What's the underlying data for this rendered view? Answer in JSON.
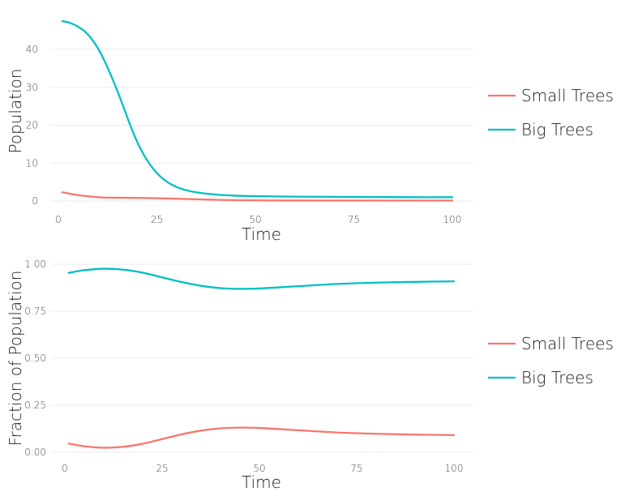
{
  "chart_data": [
    {
      "type": "line",
      "xlabel": "Time",
      "ylabel": "Population",
      "xlim": [
        0,
        100
      ],
      "ylim": [
        0,
        47.5
      ],
      "xticks": [
        0,
        25,
        50,
        75,
        100
      ],
      "yticks": [
        0,
        10,
        20,
        30,
        40
      ],
      "xtick_labels": [
        "0",
        "25",
        "50",
        "75",
        "100"
      ],
      "ytick_labels": [
        "0",
        "10",
        "20",
        "30",
        "40"
      ],
      "grid": true,
      "legend_position": "right",
      "x": [
        1,
        3,
        5,
        7,
        9,
        11,
        13,
        15,
        17,
        19,
        21,
        23,
        25,
        27,
        29,
        31,
        33,
        35,
        37,
        39,
        41,
        43,
        45,
        47,
        49,
        55,
        60,
        70,
        80,
        90,
        100
      ],
      "series": [
        {
          "name": "Small Trees",
          "color": "#F8766D",
          "values": [
            2.3,
            1.9,
            1.55,
            1.3,
            1.1,
            0.95,
            0.88,
            0.85,
            0.84,
            0.82,
            0.8,
            0.77,
            0.73,
            0.68,
            0.62,
            0.56,
            0.5,
            0.45,
            0.4,
            0.35,
            0.3,
            0.26,
            0.22,
            0.19,
            0.17,
            0.13,
            0.12,
            0.1,
            0.1,
            0.1,
            0.1
          ]
        },
        {
          "name": "Big Trees",
          "color": "#00BFC4",
          "values": [
            47.5,
            47.0,
            46.0,
            44.5,
            42.0,
            38.5,
            34.0,
            29.0,
            23.5,
            18.0,
            13.5,
            10.0,
            7.4,
            5.5,
            4.2,
            3.3,
            2.7,
            2.3,
            2.0,
            1.8,
            1.6,
            1.5,
            1.4,
            1.35,
            1.3,
            1.2,
            1.15,
            1.1,
            1.05,
            1.0,
            1.0
          ]
        }
      ]
    },
    {
      "type": "line",
      "xlabel": "Time",
      "ylabel": "Fraction of Population",
      "xlim": [
        0,
        100
      ],
      "ylim": [
        0,
        1.0
      ],
      "xticks": [
        0,
        25,
        50,
        75,
        100
      ],
      "yticks": [
        0,
        0.25,
        0.5,
        0.75,
        1.0
      ],
      "xtick_labels": [
        "0",
        "25",
        "50",
        "75",
        "100"
      ],
      "ytick_labels": [
        "0.00",
        "0.25",
        "0.50",
        "0.75",
        "1.00"
      ],
      "grid": true,
      "legend_position": "right",
      "x": [
        1,
        5,
        10,
        15,
        20,
        25,
        30,
        35,
        40,
        45,
        50,
        55,
        60,
        70,
        80,
        90,
        100
      ],
      "series": [
        {
          "name": "Small Trees",
          "color": "#F8766D",
          "values": [
            0.046,
            0.032,
            0.024,
            0.029,
            0.045,
            0.07,
            0.095,
            0.115,
            0.127,
            0.131,
            0.129,
            0.123,
            0.117,
            0.105,
            0.098,
            0.094,
            0.091
          ]
        },
        {
          "name": "Big Trees",
          "color": "#00BFC4",
          "values": [
            0.954,
            0.968,
            0.976,
            0.971,
            0.955,
            0.93,
            0.905,
            0.885,
            0.873,
            0.869,
            0.871,
            0.877,
            0.883,
            0.895,
            0.902,
            0.906,
            0.909
          ]
        }
      ]
    }
  ]
}
